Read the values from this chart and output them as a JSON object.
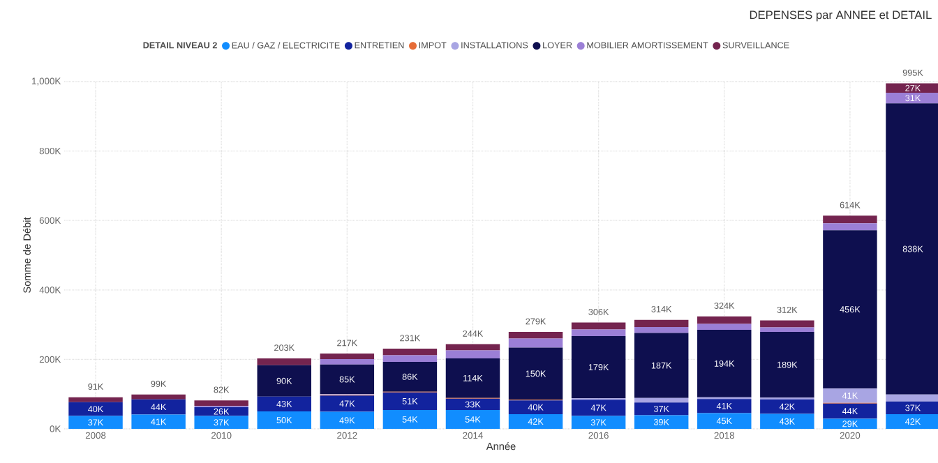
{
  "chart_data": {
    "type": "bar",
    "stacked": true,
    "title": "DEPENSES par ANNEE et DETAIL",
    "xlabel": "Année",
    "ylabel": "Somme de Débit",
    "legend_title": "DETAIL NIVEAU 2",
    "legend": "top",
    "grid": true,
    "x": [
      2008,
      2009,
      2010,
      2011,
      2012,
      2013,
      2014,
      2015,
      2016,
      2017,
      2018,
      2019,
      2020,
      2021
    ],
    "xlim": [
      2007.5,
      2021.4
    ],
    "xticks": [
      2008,
      2010,
      2012,
      2014,
      2016,
      2018,
      2020
    ],
    "ylim": [
      0,
      1000
    ],
    "yticks": [
      {
        "value": 0,
        "label": "0K"
      },
      {
        "value": 200,
        "label": "200K"
      },
      {
        "value": 400,
        "label": "400K"
      },
      {
        "value": 600,
        "label": "600K"
      },
      {
        "value": 800,
        "label": "800K"
      },
      {
        "value": 1000,
        "label": "1,000K"
      }
    ],
    "series": [
      {
        "name": "EAU / GAZ / ELECTRICITE",
        "color": "#118dff",
        "values": [
          37,
          41,
          37,
          50,
          49,
          54,
          54,
          42,
          37,
          39,
          45,
          43,
          29,
          42
        ],
        "value_labels": [
          "37K",
          "41K",
          "37K",
          "50K",
          "49K",
          "54K",
          "54K",
          "42K",
          "37K",
          "39K",
          "45K",
          "43K",
          "29K",
          "42K"
        ]
      },
      {
        "name": "ENTRETIEN",
        "color": "#12239e",
        "values": [
          40,
          44,
          26,
          43,
          47,
          51,
          33,
          40,
          47,
          37,
          41,
          42,
          44,
          37
        ],
        "value_labels": [
          "40K",
          "44K",
          "26K",
          "43K",
          "47K",
          "51K",
          "33K",
          "40K",
          "47K",
          "37K",
          "41K",
          "42K",
          "44K",
          "37K"
        ]
      },
      {
        "name": "IMPOT",
        "color": "#e66c37",
        "values": [
          0,
          0,
          0,
          0,
          2,
          2,
          2,
          2,
          0,
          0,
          0,
          0,
          2,
          0
        ],
        "value_labels": [
          null,
          null,
          null,
          null,
          null,
          null,
          null,
          null,
          null,
          null,
          null,
          null,
          null,
          null
        ]
      },
      {
        "name": "INSTALLATIONS",
        "color": "#a8a5e3",
        "values": [
          0,
          0,
          0,
          0,
          2,
          0,
          0,
          0,
          4,
          13,
          5,
          5,
          41,
          20
        ],
        "value_labels": [
          null,
          null,
          null,
          null,
          null,
          null,
          null,
          null,
          null,
          null,
          null,
          null,
          "41K",
          null
        ]
      },
      {
        "name": "LOYER",
        "color": "#0e0f4f",
        "values": [
          0,
          0,
          0,
          90,
          85,
          86,
          114,
          150,
          179,
          187,
          194,
          189,
          456,
          838
        ],
        "value_labels": [
          null,
          null,
          null,
          "90K",
          "85K",
          "86K",
          "114K",
          "150K",
          "179K",
          "187K",
          "194K",
          "189K",
          "456K",
          "838K"
        ]
      },
      {
        "name": "MOBILIER AMORTISSEMENT",
        "color": "#9b7fd6",
        "values": [
          0,
          0,
          3,
          0,
          16,
          19,
          23,
          26,
          19,
          17,
          17,
          13,
          20,
          31
        ],
        "value_labels": [
          null,
          null,
          null,
          null,
          null,
          null,
          null,
          null,
          null,
          null,
          null,
          null,
          null,
          "31K"
        ]
      },
      {
        "name": "SURVEILLANCE",
        "color": "#74244f",
        "values": [
          14,
          14,
          16,
          20,
          16,
          19,
          18,
          19,
          20,
          21,
          22,
          20,
          22,
          27
        ],
        "value_labels": [
          null,
          null,
          null,
          null,
          null,
          null,
          null,
          null,
          null,
          null,
          null,
          null,
          null,
          "27K"
        ]
      }
    ],
    "totals": [
      "91K",
      "99K",
      "82K",
      "203K",
      "217K",
      "231K",
      "244K",
      "279K",
      "306K",
      "314K",
      "324K",
      "312K",
      "614K",
      "995K"
    ]
  }
}
